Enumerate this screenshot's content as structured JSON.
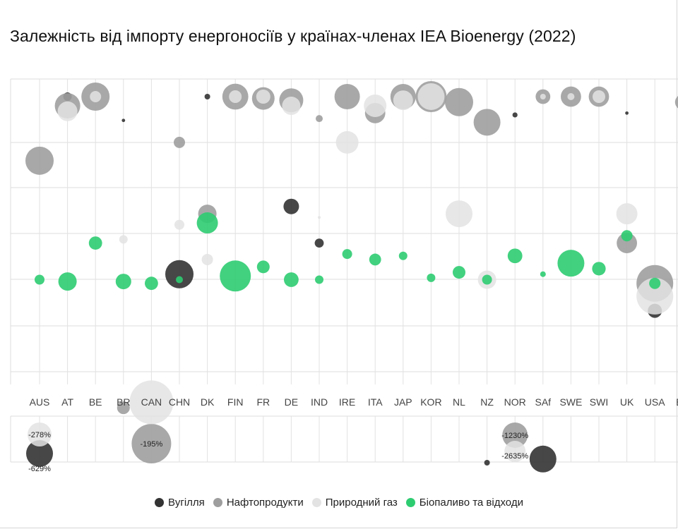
{
  "chart_data": {
    "type": "scatter",
    "title": "Залежність від імпорту енергоносіїв у країнах-членах IEA Bioenergy (2022)",
    "categories": [
      "AUS",
      "AT",
      "BE",
      "BR",
      "CAN",
      "CHN",
      "DK",
      "FIN",
      "FR",
      "DE",
      "IND",
      "IRE",
      "ITA",
      "JAP",
      "KOR",
      "NL",
      "NZ",
      "NOR",
      "SAf",
      "SWE",
      "SWI",
      "UK",
      "USA",
      "EU"
    ],
    "grid": true,
    "legend_position": "bottom",
    "ylim_main": [
      -100,
      100
    ],
    "series": [
      {
        "name": "Вугілля",
        "color": "#333333",
        "points": [
          {
            "cat": "AT",
            "y": 100,
            "size": 0.3,
            "label": ""
          },
          {
            "cat": "BR",
            "y": 87,
            "size": 0.12,
            "label": ""
          },
          {
            "cat": "CHN",
            "y": 3,
            "size": 1.0,
            "label": ""
          },
          {
            "cat": "DK",
            "y": 100,
            "size": 0.2,
            "label": ""
          },
          {
            "cat": "DE",
            "y": 40,
            "size": 0.55,
            "label": ""
          },
          {
            "cat": "IND",
            "y": 20,
            "size": 0.32,
            "label": ""
          },
          {
            "cat": "NZ",
            "y": -100,
            "size": 0.2,
            "label": ""
          },
          {
            "cat": "NOR",
            "y": 90,
            "size": 0.18,
            "label": ""
          },
          {
            "cat": "SAf",
            "y": -98,
            "size": 0.95,
            "label": ""
          },
          {
            "cat": "UK",
            "y": 91,
            "size": 0.12,
            "label": ""
          },
          {
            "cat": "USA",
            "y": -17,
            "size": 0.5,
            "label": ""
          },
          {
            "cat": "AUS",
            "y": -629,
            "size": 0.95,
            "label": "-629%"
          }
        ]
      },
      {
        "name": "Нафтопродукти",
        "color": "#9e9e9e",
        "points": [
          {
            "cat": "AUS",
            "y": 65,
            "size": 1.0,
            "label": ""
          },
          {
            "cat": "AT",
            "y": 95,
            "size": 0.9,
            "label": ""
          },
          {
            "cat": "BE",
            "y": 100,
            "size": 1.0,
            "label": ""
          },
          {
            "cat": "BR",
            "y": -70,
            "size": 0.45,
            "label": ""
          },
          {
            "cat": "CHN",
            "y": 75,
            "size": 0.4,
            "label": ""
          },
          {
            "cat": "DK",
            "y": 36,
            "size": 0.65,
            "label": ""
          },
          {
            "cat": "FIN",
            "y": 100,
            "size": 0.92,
            "label": ""
          },
          {
            "cat": "FR",
            "y": 99,
            "size": 0.8,
            "label": ""
          },
          {
            "cat": "DE",
            "y": 98,
            "size": 0.85,
            "label": ""
          },
          {
            "cat": "IND",
            "y": 88,
            "size": 0.25,
            "label": ""
          },
          {
            "cat": "IRE",
            "y": 100,
            "size": 0.9,
            "label": ""
          },
          {
            "cat": "ITA",
            "y": 91,
            "size": 0.72,
            "label": ""
          },
          {
            "cat": "JAP",
            "y": 100,
            "size": 0.9,
            "label": ""
          },
          {
            "cat": "KOR",
            "y": 100,
            "size": 1.1,
            "label": ""
          },
          {
            "cat": "NL",
            "y": 97,
            "size": 1.0,
            "label": ""
          },
          {
            "cat": "NZ",
            "y": 86,
            "size": 0.95,
            "label": ""
          },
          {
            "cat": "SAf",
            "y": 100,
            "size": 0.52,
            "label": ""
          },
          {
            "cat": "SWE",
            "y": 100,
            "size": 0.72,
            "label": ""
          },
          {
            "cat": "SWI",
            "y": 100,
            "size": 0.72,
            "label": ""
          },
          {
            "cat": "UK",
            "y": 20,
            "size": 0.72,
            "label": ""
          },
          {
            "cat": "USA",
            "y": -2,
            "size": 1.3,
            "label": ""
          },
          {
            "cat": "EU",
            "y": 97,
            "size": 0.55,
            "label": ""
          },
          {
            "cat": "CAN",
            "y": -195,
            "size": 1.4,
            "label": "-195%"
          },
          {
            "cat": "NOR",
            "y": -1230,
            "size": 0.9,
            "label": "-1230%"
          }
        ]
      },
      {
        "name": "Природний газ",
        "color": "#e3e3e3",
        "points": [
          {
            "cat": "AT",
            "y": 92,
            "size": 0.7,
            "label": ""
          },
          {
            "cat": "BE",
            "y": 100,
            "size": 0.4,
            "label": ""
          },
          {
            "cat": "BR",
            "y": 22,
            "size": 0.3,
            "label": ""
          },
          {
            "cat": "CAN",
            "y": -67,
            "size": 1.55,
            "label": ""
          },
          {
            "cat": "CHN",
            "y": 30,
            "size": 0.35,
            "label": ""
          },
          {
            "cat": "DK",
            "y": 11,
            "size": 0.4,
            "label": ""
          },
          {
            "cat": "FIN",
            "y": 100,
            "size": 0.45,
            "label": ""
          },
          {
            "cat": "FR",
            "y": 100,
            "size": 0.5,
            "label": ""
          },
          {
            "cat": "DE",
            "y": 95,
            "size": 0.65,
            "label": ""
          },
          {
            "cat": "IND",
            "y": 34,
            "size": 0.1,
            "label": ""
          },
          {
            "cat": "IRE",
            "y": 75,
            "size": 0.8,
            "label": ""
          },
          {
            "cat": "ITA",
            "y": 95,
            "size": 0.8,
            "label": ""
          },
          {
            "cat": "JAP",
            "y": 98,
            "size": 0.7,
            "label": ""
          },
          {
            "cat": "KOR",
            "y": 100,
            "size": 0.95,
            "label": ""
          },
          {
            "cat": "NL",
            "y": 36,
            "size": 0.95,
            "label": ""
          },
          {
            "cat": "NZ",
            "y": 0,
            "size": 0.65,
            "label": ""
          },
          {
            "cat": "SAf",
            "y": 100,
            "size": 0.2,
            "label": ""
          },
          {
            "cat": "SWE",
            "y": 100,
            "size": 0.25,
            "label": ""
          },
          {
            "cat": "SWI",
            "y": 100,
            "size": 0.45,
            "label": ""
          },
          {
            "cat": "UK",
            "y": 36,
            "size": 0.75,
            "label": ""
          },
          {
            "cat": "USA",
            "y": -9,
            "size": 1.3,
            "label": ""
          },
          {
            "cat": "AUS",
            "y": -278,
            "size": 0.85,
            "label": "-278%"
          },
          {
            "cat": "NOR",
            "y": -2635,
            "size": 0.75,
            "label": "-2635%"
          }
        ]
      },
      {
        "name": "Біопаливо та відходи",
        "color": "#2ecc71",
        "points": [
          {
            "cat": "AUS",
            "y": 0,
            "size": 0.35,
            "label": ""
          },
          {
            "cat": "AT",
            "y": -1,
            "size": 0.65,
            "label": ""
          },
          {
            "cat": "BE",
            "y": 20,
            "size": 0.47,
            "label": ""
          },
          {
            "cat": "BR",
            "y": -1,
            "size": 0.55,
            "label": ""
          },
          {
            "cat": "CAN",
            "y": -2,
            "size": 0.47,
            "label": ""
          },
          {
            "cat": "CHN",
            "y": 0,
            "size": 0.25,
            "label": ""
          },
          {
            "cat": "DK",
            "y": 31,
            "size": 0.75,
            "label": ""
          },
          {
            "cat": "FIN",
            "y": 2,
            "size": 1.1,
            "label": ""
          },
          {
            "cat": "FR",
            "y": 7,
            "size": 0.45,
            "label": ""
          },
          {
            "cat": "DE",
            "y": 0,
            "size": 0.52,
            "label": ""
          },
          {
            "cat": "IND",
            "y": 0,
            "size": 0.3,
            "label": ""
          },
          {
            "cat": "IRE",
            "y": 14,
            "size": 0.35,
            "label": ""
          },
          {
            "cat": "ITA",
            "y": 11,
            "size": 0.42,
            "label": ""
          },
          {
            "cat": "JAP",
            "y": 13,
            "size": 0.3,
            "label": ""
          },
          {
            "cat": "KOR",
            "y": 1,
            "size": 0.3,
            "label": ""
          },
          {
            "cat": "NL",
            "y": 4,
            "size": 0.45,
            "label": ""
          },
          {
            "cat": "NZ",
            "y": 0,
            "size": 0.35,
            "label": ""
          },
          {
            "cat": "NOR",
            "y": 13,
            "size": 0.52,
            "label": ""
          },
          {
            "cat": "SAf",
            "y": 3,
            "size": 0.2,
            "label": ""
          },
          {
            "cat": "SWE",
            "y": 9,
            "size": 0.95,
            "label": ""
          },
          {
            "cat": "SWI",
            "y": 6,
            "size": 0.48,
            "label": ""
          },
          {
            "cat": "UK",
            "y": 24,
            "size": 0.4,
            "label": ""
          },
          {
            "cat": "USA",
            "y": -2,
            "size": 0.4,
            "label": ""
          }
        ]
      }
    ]
  }
}
